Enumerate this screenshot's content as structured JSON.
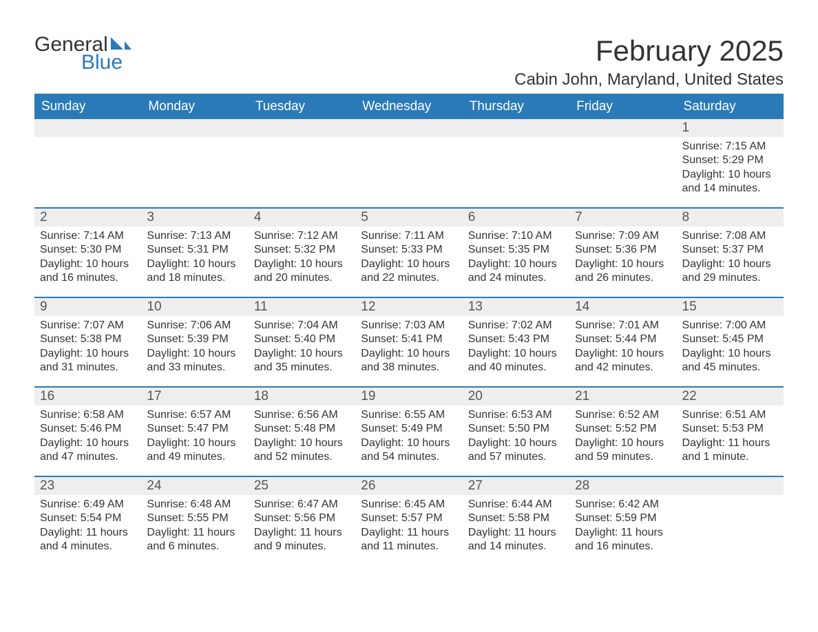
{
  "logo": {
    "general": "General",
    "blue": "Blue"
  },
  "title": "February 2025",
  "location": "Cabin John, Maryland, United States",
  "colors": {
    "header_bg": "#2a7ab8",
    "header_text": "#ffffff",
    "daynum_bg": "#eeeeee",
    "border": "#2a7ab8",
    "text": "#333333",
    "logo_blue": "#2a7ab8"
  },
  "day_headers": [
    "Sunday",
    "Monday",
    "Tuesday",
    "Wednesday",
    "Thursday",
    "Friday",
    "Saturday"
  ],
  "weeks": [
    [
      null,
      null,
      null,
      null,
      null,
      null,
      {
        "n": "1",
        "sunrise": "Sunrise: 7:15 AM",
        "sunset": "Sunset: 5:29 PM",
        "daylight": "Daylight: 10 hours and 14 minutes."
      }
    ],
    [
      {
        "n": "2",
        "sunrise": "Sunrise: 7:14 AM",
        "sunset": "Sunset: 5:30 PM",
        "daylight": "Daylight: 10 hours and 16 minutes."
      },
      {
        "n": "3",
        "sunrise": "Sunrise: 7:13 AM",
        "sunset": "Sunset: 5:31 PM",
        "daylight": "Daylight: 10 hours and 18 minutes."
      },
      {
        "n": "4",
        "sunrise": "Sunrise: 7:12 AM",
        "sunset": "Sunset: 5:32 PM",
        "daylight": "Daylight: 10 hours and 20 minutes."
      },
      {
        "n": "5",
        "sunrise": "Sunrise: 7:11 AM",
        "sunset": "Sunset: 5:33 PM",
        "daylight": "Daylight: 10 hours and 22 minutes."
      },
      {
        "n": "6",
        "sunrise": "Sunrise: 7:10 AM",
        "sunset": "Sunset: 5:35 PM",
        "daylight": "Daylight: 10 hours and 24 minutes."
      },
      {
        "n": "7",
        "sunrise": "Sunrise: 7:09 AM",
        "sunset": "Sunset: 5:36 PM",
        "daylight": "Daylight: 10 hours and 26 minutes."
      },
      {
        "n": "8",
        "sunrise": "Sunrise: 7:08 AM",
        "sunset": "Sunset: 5:37 PM",
        "daylight": "Daylight: 10 hours and 29 minutes."
      }
    ],
    [
      {
        "n": "9",
        "sunrise": "Sunrise: 7:07 AM",
        "sunset": "Sunset: 5:38 PM",
        "daylight": "Daylight: 10 hours and 31 minutes."
      },
      {
        "n": "10",
        "sunrise": "Sunrise: 7:06 AM",
        "sunset": "Sunset: 5:39 PM",
        "daylight": "Daylight: 10 hours and 33 minutes."
      },
      {
        "n": "11",
        "sunrise": "Sunrise: 7:04 AM",
        "sunset": "Sunset: 5:40 PM",
        "daylight": "Daylight: 10 hours and 35 minutes."
      },
      {
        "n": "12",
        "sunrise": "Sunrise: 7:03 AM",
        "sunset": "Sunset: 5:41 PM",
        "daylight": "Daylight: 10 hours and 38 minutes."
      },
      {
        "n": "13",
        "sunrise": "Sunrise: 7:02 AM",
        "sunset": "Sunset: 5:43 PM",
        "daylight": "Daylight: 10 hours and 40 minutes."
      },
      {
        "n": "14",
        "sunrise": "Sunrise: 7:01 AM",
        "sunset": "Sunset: 5:44 PM",
        "daylight": "Daylight: 10 hours and 42 minutes."
      },
      {
        "n": "15",
        "sunrise": "Sunrise: 7:00 AM",
        "sunset": "Sunset: 5:45 PM",
        "daylight": "Daylight: 10 hours and 45 minutes."
      }
    ],
    [
      {
        "n": "16",
        "sunrise": "Sunrise: 6:58 AM",
        "sunset": "Sunset: 5:46 PM",
        "daylight": "Daylight: 10 hours and 47 minutes."
      },
      {
        "n": "17",
        "sunrise": "Sunrise: 6:57 AM",
        "sunset": "Sunset: 5:47 PM",
        "daylight": "Daylight: 10 hours and 49 minutes."
      },
      {
        "n": "18",
        "sunrise": "Sunrise: 6:56 AM",
        "sunset": "Sunset: 5:48 PM",
        "daylight": "Daylight: 10 hours and 52 minutes."
      },
      {
        "n": "19",
        "sunrise": "Sunrise: 6:55 AM",
        "sunset": "Sunset: 5:49 PM",
        "daylight": "Daylight: 10 hours and 54 minutes."
      },
      {
        "n": "20",
        "sunrise": "Sunrise: 6:53 AM",
        "sunset": "Sunset: 5:50 PM",
        "daylight": "Daylight: 10 hours and 57 minutes."
      },
      {
        "n": "21",
        "sunrise": "Sunrise: 6:52 AM",
        "sunset": "Sunset: 5:52 PM",
        "daylight": "Daylight: 10 hours and 59 minutes."
      },
      {
        "n": "22",
        "sunrise": "Sunrise: 6:51 AM",
        "sunset": "Sunset: 5:53 PM",
        "daylight": "Daylight: 11 hours and 1 minute."
      }
    ],
    [
      {
        "n": "23",
        "sunrise": "Sunrise: 6:49 AM",
        "sunset": "Sunset: 5:54 PM",
        "daylight": "Daylight: 11 hours and 4 minutes."
      },
      {
        "n": "24",
        "sunrise": "Sunrise: 6:48 AM",
        "sunset": "Sunset: 5:55 PM",
        "daylight": "Daylight: 11 hours and 6 minutes."
      },
      {
        "n": "25",
        "sunrise": "Sunrise: 6:47 AM",
        "sunset": "Sunset: 5:56 PM",
        "daylight": "Daylight: 11 hours and 9 minutes."
      },
      {
        "n": "26",
        "sunrise": "Sunrise: 6:45 AM",
        "sunset": "Sunset: 5:57 PM",
        "daylight": "Daylight: 11 hours and 11 minutes."
      },
      {
        "n": "27",
        "sunrise": "Sunrise: 6:44 AM",
        "sunset": "Sunset: 5:58 PM",
        "daylight": "Daylight: 11 hours and 14 minutes."
      },
      {
        "n": "28",
        "sunrise": "Sunrise: 6:42 AM",
        "sunset": "Sunset: 5:59 PM",
        "daylight": "Daylight: 11 hours and 16 minutes."
      },
      null
    ]
  ]
}
